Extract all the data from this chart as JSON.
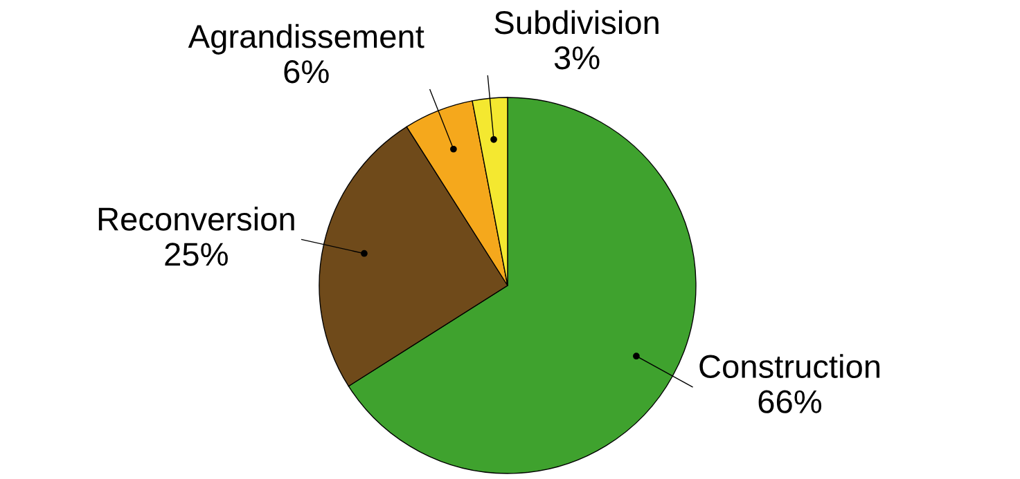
{
  "chart_data": {
    "type": "pie",
    "categories": [
      "Construction",
      "Reconversion",
      "Agrandissement",
      "Subdivision"
    ],
    "values": [
      66,
      25,
      6,
      3
    ],
    "value_labels": [
      "66%",
      "25%",
      "6%",
      "3%"
    ],
    "colors": [
      "#3fa22e",
      "#6f4a1a",
      "#f5a81c",
      "#f4e830"
    ],
    "legend": false
  }
}
